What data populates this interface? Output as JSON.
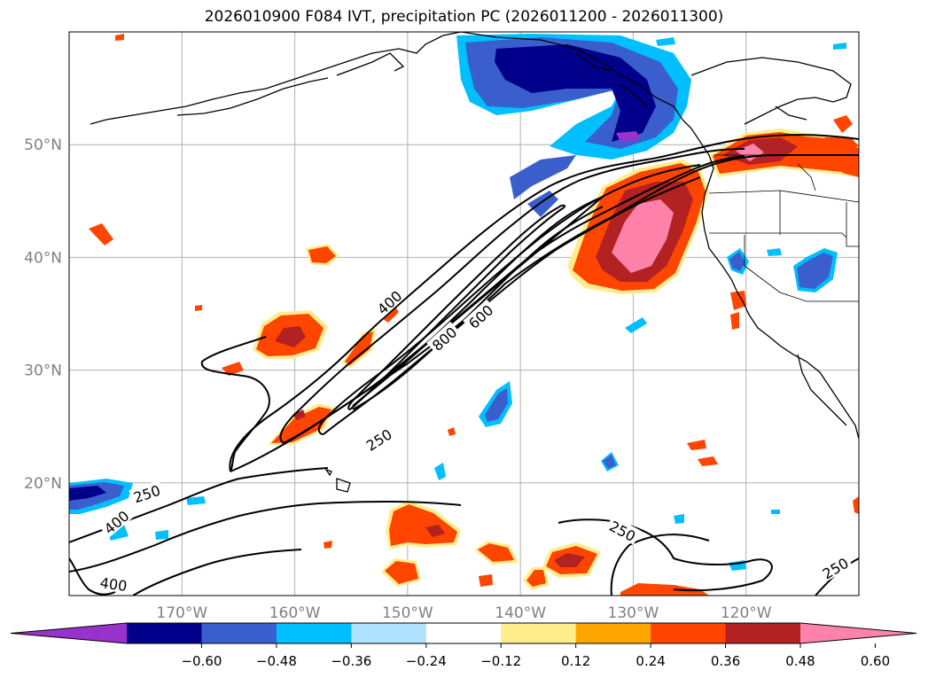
{
  "title": "2026010900 F084 IVT, precipitation PC (2026011200 - 2026011300)",
  "map": {
    "lon_range": [
      -180,
      -110
    ],
    "lat_range": [
      10,
      60
    ],
    "lon_ticks": [
      {
        "lon": -170,
        "label": "170°W"
      },
      {
        "lon": -160,
        "label": "160°W"
      },
      {
        "lon": -150,
        "label": "150°W"
      },
      {
        "lon": -140,
        "label": "140°W"
      },
      {
        "lon": -130,
        "label": "130°W"
      },
      {
        "lon": -120,
        "label": "120°W"
      }
    ],
    "lat_ticks": [
      {
        "lat": 50,
        "label": "50°N"
      },
      {
        "lat": 40,
        "label": "40°N"
      },
      {
        "lat": 30,
        "label": "30°N"
      },
      {
        "lat": 20,
        "label": "20°N"
      }
    ],
    "contour_labels": [
      "400",
      "800",
      "600",
      "250",
      "250",
      "250",
      "400",
      "400",
      "250"
    ]
  },
  "colorbar": {
    "colors": [
      "#9932CC",
      "#00008B",
      "#3A5FCD",
      "#00BFFF",
      "#B0E2FF",
      "#FFFFFF",
      "#FFEC8B",
      "#FFA500",
      "#FF4500",
      "#B22222",
      "#FF82AB"
    ],
    "tick_labels": [
      "−0.60",
      "−0.48",
      "−0.36",
      "−0.24",
      "−0.12",
      "0.12",
      "0.24",
      "0.36",
      "0.48",
      "0.60"
    ]
  }
}
